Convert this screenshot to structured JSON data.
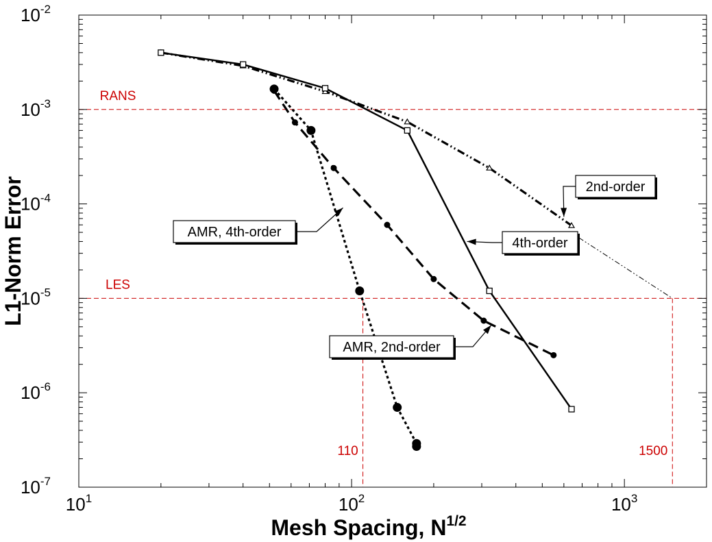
{
  "chart_data": {
    "type": "line",
    "xscale": "log",
    "yscale": "log",
    "xlim": [
      10,
      2000
    ],
    "ylim": [
      1e-07,
      0.01
    ],
    "xlabel": "Mesh Spacing, N",
    "xlabel_sup": "1/2",
    "ylabel": "L1-Norm Error",
    "grid": false,
    "x_ticks": [
      {
        "value": 10,
        "base": "10",
        "exp": "1"
      },
      {
        "value": 100,
        "base": "10",
        "exp": "2"
      },
      {
        "value": 1000,
        "base": "10",
        "exp": "3"
      }
    ],
    "y_ticks": [
      {
        "value": 1e-07,
        "base": "10",
        "exp": "-7"
      },
      {
        "value": 1e-06,
        "base": "10",
        "exp": "-6"
      },
      {
        "value": 1e-05,
        "base": "10",
        "exp": "-5"
      },
      {
        "value": 0.0001,
        "base": "10",
        "exp": "-4"
      },
      {
        "value": 0.001,
        "base": "10",
        "exp": "-3"
      },
      {
        "value": 0.01,
        "base": "10",
        "exp": "-2"
      }
    ],
    "reference_lines": [
      {
        "label": "RANS",
        "y": 0.001,
        "color": "#cc0000"
      },
      {
        "label": "LES",
        "y": 1e-05,
        "color": "#cc0000"
      }
    ],
    "vertical_refs": [
      {
        "label": "110",
        "x": 110,
        "color": "#cc0000"
      },
      {
        "label": "1500",
        "x": 1500,
        "color": "#cc0000"
      }
    ],
    "series": [
      {
        "name": "2nd-order",
        "style": "dashdotdot",
        "marker": "triangle",
        "color": "#000000",
        "x": [
          20,
          40,
          80,
          160,
          320,
          640
        ],
        "y": [
          0.004,
          0.0029,
          0.00155,
          0.00074,
          0.00024,
          5.9e-05
        ]
      },
      {
        "name": "4th-order",
        "style": "solid",
        "marker": "square",
        "color": "#000000",
        "x": [
          20,
          40,
          80,
          160,
          320,
          640
        ],
        "y": [
          0.004,
          0.003,
          0.00168,
          0.0006,
          1.2e-05,
          6.7e-07
        ]
      },
      {
        "name": "AMR, 4th-order",
        "style": "dotted",
        "marker": "bigdot",
        "color": "#000000",
        "x": [
          52,
          71,
          107,
          147,
          173,
          173
        ],
        "y": [
          0.00165,
          0.0006,
          1.2e-05,
          7e-07,
          2.9e-07,
          2.7e-07
        ]
      },
      {
        "name": "AMR, 2nd-order",
        "style": "dashed",
        "marker": "dot",
        "color": "#000000",
        "x": [
          52,
          62,
          86,
          135,
          200,
          305,
          550
        ],
        "y": [
          0.00158,
          0.00073,
          0.00024,
          6e-05,
          1.6e-05,
          5.8e-06,
          2.5e-06
        ]
      }
    ],
    "extrapolation": {
      "x": [
        680,
        1500
      ],
      "y": [
        4.4e-05,
        1e-05
      ]
    },
    "annotations": [
      {
        "text": "2nd-order",
        "target_x": 600,
        "target_y": 7.3e-05
      },
      {
        "text": "4th-order",
        "target_x": 265,
        "target_y": 4e-05
      },
      {
        "text": "AMR, 4th-order",
        "target_x": 93,
        "target_y": 9.1e-05
      },
      {
        "text": "AMR, 2nd-order",
        "target_x": 325,
        "target_y": 5.2e-06
      }
    ]
  }
}
